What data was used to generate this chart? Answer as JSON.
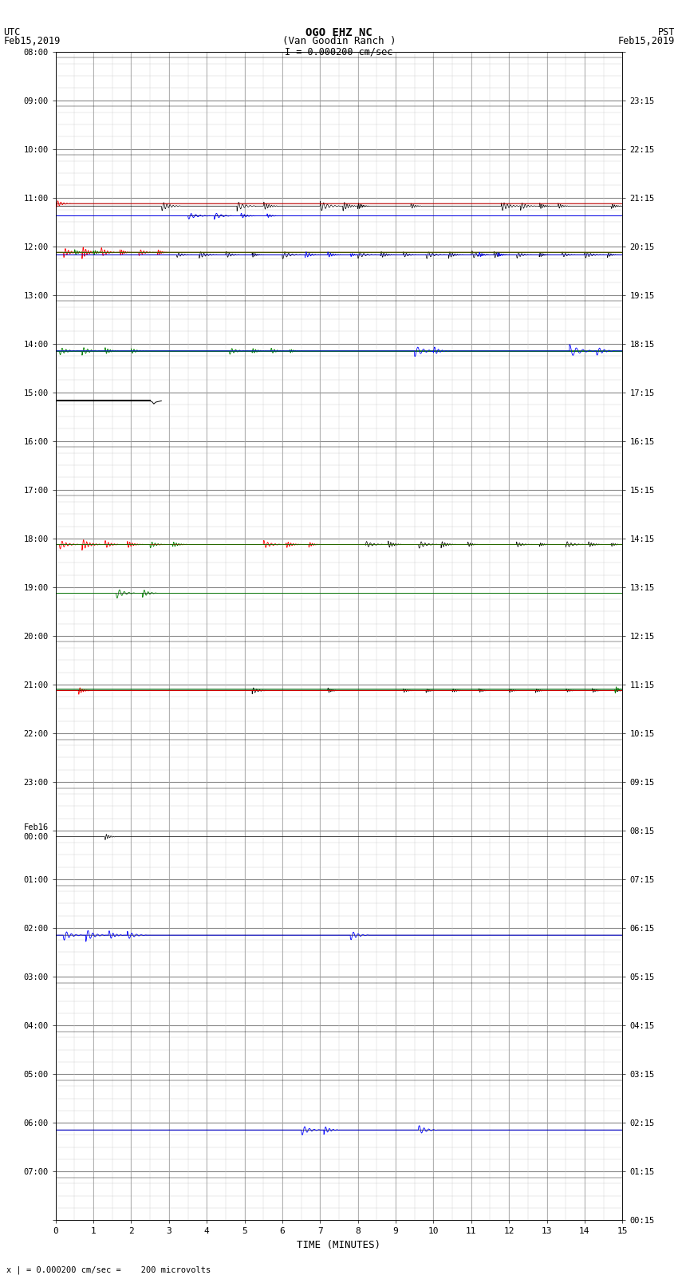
{
  "title_line1": "OGO EHZ NC",
  "title_line2": "(Van Goodin Ranch )",
  "title_line3": "I = 0.000200 cm/sec",
  "left_label_top": "UTC",
  "left_label_date": "Feb15,2019",
  "right_label_top": "PST",
  "right_label_date": "Feb15,2019",
  "xlabel": "TIME (MINUTES)",
  "footer": "x | = 0.000200 cm/sec =    200 microvolts",
  "utc_times": [
    "08:00",
    "09:00",
    "10:00",
    "11:00",
    "12:00",
    "13:00",
    "14:00",
    "15:00",
    "16:00",
    "17:00",
    "18:00",
    "19:00",
    "20:00",
    "21:00",
    "22:00",
    "23:00",
    "Feb16\n00:00",
    "01:00",
    "02:00",
    "03:00",
    "04:00",
    "05:00",
    "06:00",
    "07:00"
  ],
  "pst_times": [
    "00:15",
    "01:15",
    "02:15",
    "03:15",
    "04:15",
    "05:15",
    "06:15",
    "07:15",
    "08:15",
    "09:15",
    "10:15",
    "11:15",
    "12:15",
    "13:15",
    "14:15",
    "15:15",
    "16:15",
    "17:15",
    "18:15",
    "19:15",
    "20:15",
    "21:15",
    "22:15",
    "23:15"
  ],
  "n_hours": 24,
  "subrows_per_hour": 4,
  "x_min": 0,
  "x_max": 15,
  "bg_color": "#ffffff",
  "grid_major_color": "#888888",
  "grid_minor_color": "#cccccc"
}
